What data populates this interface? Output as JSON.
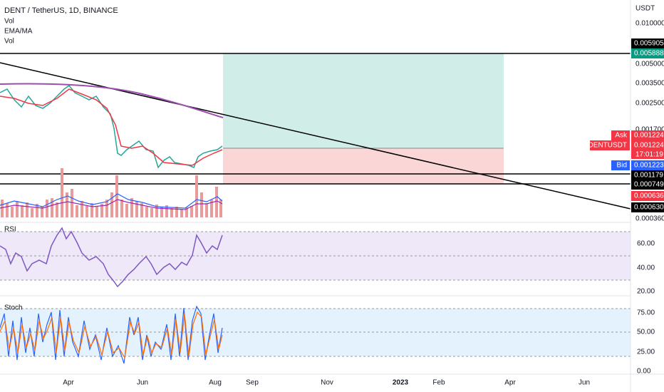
{
  "header": {
    "symbol": "DENT / TetherUS, 1D, BINANCE",
    "indicators": [
      "Vol",
      "EMA/MA",
      "Vol"
    ]
  },
  "price_axis": {
    "unit": "USDT",
    "ticks": [
      "0.010000",
      "0.005000",
      "0.003500",
      "0.002500",
      "0.001700",
      "0.000360"
    ]
  },
  "price_tags": [
    {
      "value": "0.005905",
      "color": "#000000"
    },
    {
      "value": "0.005888",
      "color": "#089981"
    },
    {
      "label": "Ask",
      "value": "0.001224",
      "color": "#f23645"
    },
    {
      "label": "DENTUSDT",
      "value": "0.001224",
      "countdown": "17:01:19",
      "color": "#f23645"
    },
    {
      "label": "Bid",
      "value": "0.001223",
      "color": "#2962ff"
    },
    {
      "value": "0.001179",
      "color": "#000000"
    },
    {
      "value": "0.000749",
      "color": "#000000"
    },
    {
      "value": "0.000636",
      "color": "#f23645"
    },
    {
      "value": "0.000630",
      "color": "#000000"
    }
  ],
  "rsi": {
    "title": "RSI",
    "ticks": [
      "60.00",
      "40.00",
      "20.00"
    ]
  },
  "stoch": {
    "title": "Stoch",
    "ticks": [
      "75.00",
      "50.00",
      "25.00",
      "0.00"
    ]
  },
  "time_axis": [
    "Apr",
    "Jun",
    "Aug",
    "Sep",
    "Nov",
    "2023",
    "Feb",
    "Apr",
    "Jun"
  ]
}
